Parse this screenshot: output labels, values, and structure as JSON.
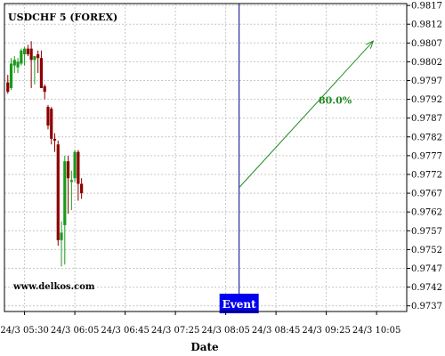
{
  "chart_data": {
    "type": "candlestick",
    "title": "USDCHF 5 (FOREX)",
    "xlabel": "Date",
    "watermark": "www.delkos.com",
    "y_ticks": [
      "0.9817",
      "0.9812",
      "0.9807",
      "0.9802",
      "0.9797",
      "0.9792",
      "0.9787",
      "0.9782",
      "0.9777",
      "0.9772",
      "0.9767",
      "0.9762",
      "0.9757",
      "0.9752",
      "0.9747",
      "0.9742",
      "0.9737"
    ],
    "ylim": [
      0.97355,
      0.98175
    ],
    "x_ticks": [
      "24/3 05:30",
      "24/3 06:05",
      "24/3 06:45",
      "24/3 07:25",
      "24/3 08:05",
      "24/3 08:45",
      "24/3 09:25",
      "24/3 10:05"
    ],
    "xlim": [
      0,
      120
    ],
    "grid": true,
    "candles": [
      {
        "x": 1,
        "open": 0.97965,
        "high": 0.97985,
        "low": 0.97935,
        "close": 0.9794
      },
      {
        "x": 2,
        "open": 0.9795,
        "high": 0.9803,
        "low": 0.97945,
        "close": 0.98015
      },
      {
        "x": 3,
        "open": 0.9801,
        "high": 0.98035,
        "low": 0.9799,
        "close": 0.98025
      },
      {
        "x": 4,
        "open": 0.98005,
        "high": 0.9803,
        "low": 0.9799,
        "close": 0.9802
      },
      {
        "x": 5,
        "open": 0.98015,
        "high": 0.98055,
        "low": 0.9801,
        "close": 0.9805
      },
      {
        "x": 6,
        "open": 0.9804,
        "high": 0.9806,
        "low": 0.9801,
        "close": 0.98055
      },
      {
        "x": 7,
        "open": 0.98055,
        "high": 0.98065,
        "low": 0.98035,
        "close": 0.9804
      },
      {
        "x": 8,
        "open": 0.98055,
        "high": 0.98075,
        "low": 0.9795,
        "close": 0.98025
      },
      {
        "x": 9,
        "open": 0.98025,
        "high": 0.98035,
        "low": 0.9796,
        "close": 0.98035
      },
      {
        "x": 10,
        "open": 0.9804,
        "high": 0.9805,
        "low": 0.9799,
        "close": 0.9803
      },
      {
        "x": 11,
        "open": 0.9803,
        "high": 0.9805,
        "low": 0.97955,
        "close": 0.9795
      },
      {
        "x": 12,
        "open": 0.97955,
        "high": 0.9796,
        "low": 0.9792,
        "close": 0.9794
      },
      {
        "x": 13,
        "open": 0.979,
        "high": 0.97905,
        "low": 0.9784,
        "close": 0.9785
      },
      {
        "x": 14,
        "open": 0.97895,
        "high": 0.979,
        "low": 0.978,
        "close": 0.97815
      },
      {
        "x": 15,
        "open": 0.97815,
        "high": 0.9783,
        "low": 0.9778,
        "close": 0.9781
      },
      {
        "x": 16,
        "open": 0.978,
        "high": 0.9781,
        "low": 0.9753,
        "close": 0.97545
      },
      {
        "x": 17,
        "open": 0.97545,
        "high": 0.97595,
        "low": 0.97475,
        "close": 0.97565
      },
      {
        "x": 18,
        "open": 0.97585,
        "high": 0.9777,
        "low": 0.9748,
        "close": 0.97755
      },
      {
        "x": 19,
        "open": 0.97755,
        "high": 0.9777,
        "low": 0.97615,
        "close": 0.9771
      },
      {
        "x": 20,
        "open": 0.977,
        "high": 0.9773,
        "low": 0.97625,
        "close": 0.97705
      },
      {
        "x": 21,
        "open": 0.9771,
        "high": 0.97785,
        "low": 0.977,
        "close": 0.9778
      },
      {
        "x": 22,
        "open": 0.9778,
        "high": 0.97785,
        "low": 0.9765,
        "close": 0.97695
      },
      {
        "x": 23,
        "open": 0.97695,
        "high": 0.9771,
        "low": 0.97655,
        "close": 0.9767
      }
    ],
    "up_color": "#1a9a1a",
    "down_color": "#8b0000",
    "event": {
      "label": "Event",
      "x": 70,
      "color": "#00008b",
      "box_color": "#0000ee"
    },
    "projection": {
      "from": [
        70,
        0.97685
      ],
      "to": [
        110,
        0.98075
      ],
      "label": "80.0%",
      "color": "#228b22"
    }
  }
}
